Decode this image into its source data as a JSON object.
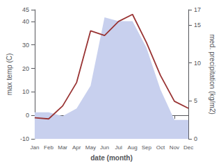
{
  "chart_data": {
    "type": "line",
    "xlabel": "date (month)",
    "ylabel": "max temp (C)",
    "y2label": "med. precipitation (kg/m2)",
    "categories": [
      "Jan",
      "Feb",
      "Mar",
      "Apr",
      "May",
      "Jun",
      "Jul",
      "Aug",
      "Sep",
      "Oct",
      "Nov",
      "Dec"
    ],
    "series": [
      {
        "type": "area",
        "axis": "y2",
        "color": "#c8d0ee",
        "values": [
          3.5,
          3.5,
          3,
          4,
          7,
          16,
          15.5,
          15.5,
          12,
          6.5,
          2.5,
          2.5
        ]
      },
      {
        "type": "line",
        "color": "#993333",
        "values": [
          -1,
          -1.5,
          4,
          14,
          36,
          34,
          40,
          43,
          31,
          17,
          6,
          3
        ]
      }
    ],
    "ylim": [
      -10,
      45
    ],
    "yticks": [
      -10,
      0,
      10,
      20,
      30,
      40
    ],
    "y2lim": [
      0,
      17
    ],
    "y2ticks": [
      0,
      5,
      10,
      15
    ],
    "grid": false
  }
}
